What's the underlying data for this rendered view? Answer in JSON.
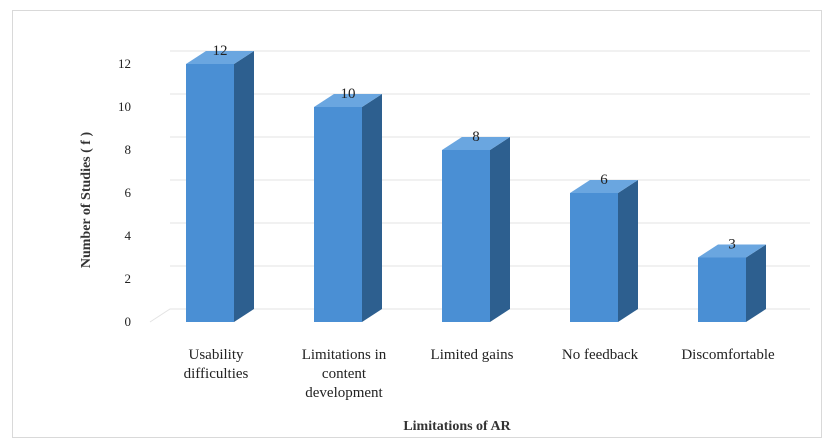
{
  "chart_data": {
    "type": "bar",
    "style": "3d-column",
    "categories": [
      "Usability difficulties",
      "Limitations in content development",
      "Limited gains",
      "No feedback",
      "Discomfortable"
    ],
    "category_lines": [
      [
        "Usability",
        "difficulties"
      ],
      [
        "Limitations in",
        "content",
        "development"
      ],
      [
        "Limited gains"
      ],
      [
        "No feedback"
      ],
      [
        "Discomfortable"
      ]
    ],
    "values": [
      12,
      10,
      8,
      6,
      3
    ],
    "data_labels": [
      "12",
      "10",
      "8",
      "6",
      "3"
    ],
    "title": "",
    "xlabel": "Limitations of AR",
    "ylabel": "Number of Studies ( f )",
    "ylim": [
      0,
      12
    ],
    "yticks": [
      0,
      2,
      4,
      6,
      8,
      10,
      12
    ],
    "grid": true,
    "legend": "none",
    "colors": {
      "bar_front": "#4a8fd4",
      "bar_side": "#2d5f8f",
      "bar_top": "#6aa6e0",
      "grid": "#e3e3e3"
    }
  }
}
